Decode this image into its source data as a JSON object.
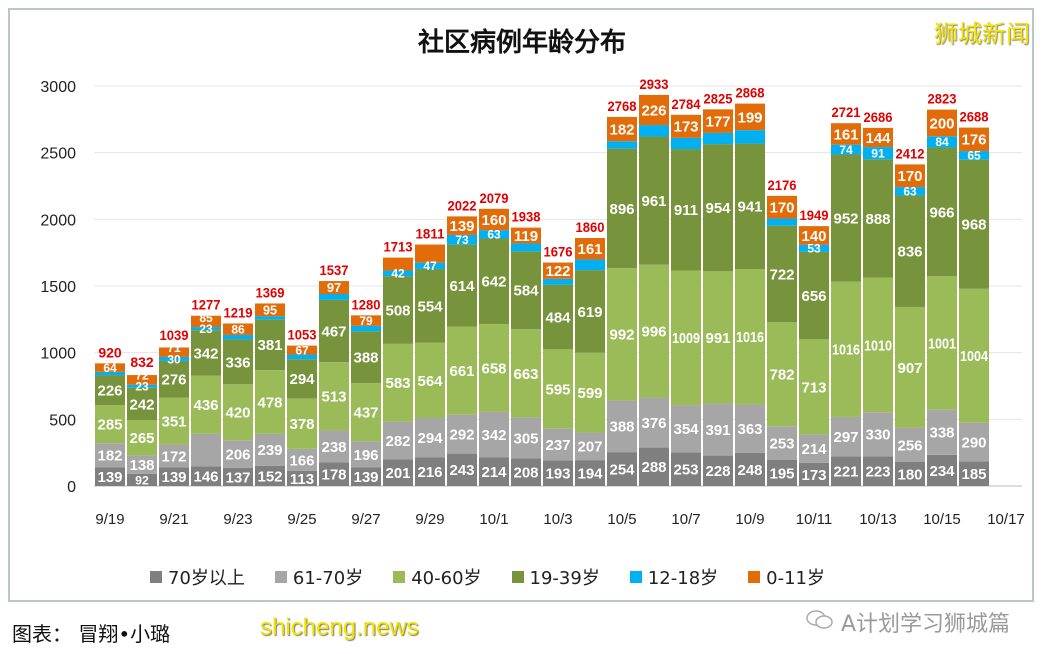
{
  "watermark_top": "狮城新闻",
  "credit": "图表：  冒翔•小璐",
  "watermark_bottom": "shicheng.news",
  "wechat_account": "A计划学习狮城篇",
  "chart_data": {
    "type": "bar",
    "stacked": true,
    "title": "社区病例年龄分布",
    "xlabel": "",
    "ylabel": "",
    "ylim": [
      0,
      3000
    ],
    "yticks": [
      0,
      500,
      1000,
      1500,
      2000,
      2500,
      3000
    ],
    "grid": true,
    "legend_position": "bottom",
    "x_tick_labels": [
      "9/19",
      "9/21",
      "9/23",
      "9/25",
      "9/27",
      "9/29",
      "10/1",
      "10/3",
      "10/5",
      "10/7",
      "10/9",
      "10/11",
      "10/13",
      "10/15",
      "10/17"
    ],
    "categories": [
      "9/19",
      "9/20",
      "9/21",
      "9/22",
      "9/23",
      "9/24",
      "9/25",
      "9/26",
      "9/27",
      "9/28",
      "9/29",
      "9/30",
      "10/1",
      "10/2",
      "10/3",
      "10/4",
      "10/5",
      "10/6",
      "10/7",
      "10/8",
      "10/9",
      "10/10",
      "10/11",
      "10/12",
      "10/13",
      "10/14",
      "10/15",
      "10/16"
    ],
    "totals": [
      920,
      832,
      1039,
      1277,
      1219,
      1369,
      1053,
      1537,
      1280,
      1713,
      1811,
      2022,
      2079,
      1938,
      1676,
      1860,
      2768,
      2933,
      2784,
      2825,
      2868,
      2176,
      1949,
      2721,
      2686,
      2412,
      2823,
      2688
    ],
    "series": [
      {
        "name": "70岁以上",
        "color": "#7f7f7f",
        "values": [
          139,
          92,
          139,
          146,
          137,
          152,
          113,
          178,
          139,
          201,
          216,
          243,
          214,
          208,
          193,
          194,
          254,
          288,
          253,
          228,
          248,
          195,
          173,
          221,
          223,
          180,
          234,
          185
        ],
        "unlabeled": []
      },
      {
        "name": "61-70岁",
        "color": "#a6a6a6",
        "values": [
          182,
          138,
          172,
          245,
          206,
          239,
          166,
          238,
          196,
          282,
          294,
          292,
          342,
          305,
          237,
          207,
          388,
          376,
          354,
          391,
          363,
          253,
          214,
          297,
          330,
          256,
          338,
          290
        ],
        "unlabeled": [
          3
        ]
      },
      {
        "name": "40-60岁",
        "color": "#9bbb59",
        "values": [
          285,
          265,
          351,
          436,
          420,
          478,
          378,
          513,
          437,
          583,
          564,
          661,
          658,
          663,
          595,
          599,
          992,
          996,
          1009,
          991,
          1016,
          782,
          713,
          1016,
          1010,
          907,
          1001,
          1004
        ],
        "unlabeled": []
      },
      {
        "name": "19-39岁",
        "color": "#77933c",
        "values": [
          226,
          242,
          276,
          342,
          336,
          381,
          294,
          467,
          388,
          508,
          554,
          614,
          642,
          584,
          484,
          619,
          896,
          961,
          911,
          954,
          941,
          722,
          656,
          952,
          888,
          836,
          966,
          968
        ],
        "unlabeled": []
      },
      {
        "name": "12-18岁",
        "color": "#00b0f0",
        "values": [
          24,
          23,
          30,
          23,
          34,
          24,
          35,
          44,
          41,
          42,
          47,
          73,
          63,
          59,
          45,
          80,
          56,
          86,
          84,
          84,
          101,
          54,
          53,
          74,
          91,
          63,
          84,
          65
        ],
        "unlabeled": [
          0,
          4,
          5,
          6,
          7,
          8,
          13,
          14,
          15,
          16,
          17,
          18,
          19,
          20,
          21
        ]
      },
      {
        "name": "0-11岁",
        "color": "#e36c0a",
        "values": [
          64,
          72,
          71,
          85,
          86,
          95,
          67,
          97,
          79,
          97,
          136,
          139,
          160,
          119,
          122,
          161,
          182,
          226,
          173,
          177,
          199,
          170,
          140,
          161,
          144,
          170,
          200,
          176
        ],
        "unlabeled": [
          9,
          10
        ]
      }
    ],
    "total_label_color": "#e00000"
  }
}
